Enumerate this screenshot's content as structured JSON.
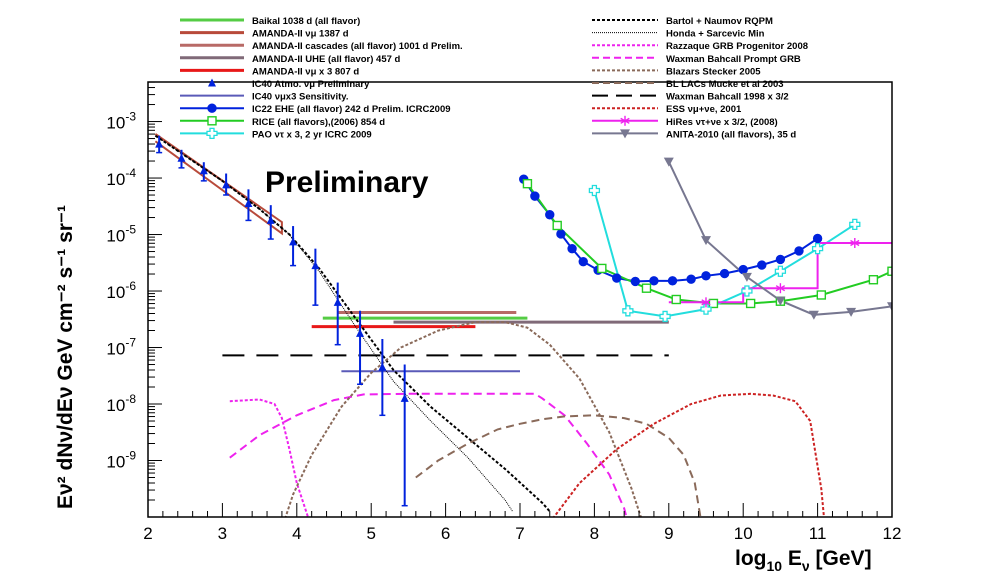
{
  "chart_data": {
    "type": "line",
    "title": "",
    "annotation": "Preliminary",
    "xlabel": "log10 Eν [GeV]",
    "ylabel": "Eν² dNν/dEν GeV cm⁻² s⁻¹ sr⁻¹",
    "xlim": [
      2,
      12
    ],
    "ylim_log10": [
      -10,
      -2.3
    ],
    "x_ticks": [
      "2",
      "3",
      "4",
      "5",
      "6",
      "7",
      "8",
      "9",
      "10",
      "11",
      "12"
    ],
    "y_ticks": [
      {
        "base": "10",
        "exp": "-9",
        "value": -9
      },
      {
        "base": "10",
        "exp": "-8",
        "value": -8
      },
      {
        "base": "10",
        "exp": "-7",
        "value": -7
      },
      {
        "base": "10",
        "exp": "-6",
        "value": -6
      },
      {
        "base": "10",
        "exp": "-5",
        "value": -5
      },
      {
        "base": "10",
        "exp": "-4",
        "value": -4
      },
      {
        "base": "10",
        "exp": "-3",
        "value": -3
      }
    ],
    "legend_left": [
      {
        "label": "Baikal 1038 d (all flavor)",
        "color": "#55cc44",
        "style": "solid",
        "width": 3
      },
      {
        "label": "AMANDA-II νμ 1387 d",
        "color": "#b84a3a",
        "style": "solid",
        "width": 3
      },
      {
        "label": "AMANDA-II cascades (all flavor) 1001 d Prelim.",
        "color": "#b86a66",
        "style": "solid",
        "width": 3
      },
      {
        "label": "AMANDA-II UHE (all flavor) 457 d",
        "color": "#806a78",
        "style": "solid",
        "width": 3
      },
      {
        "label": "AMANDA-II νμ x 3 807 d",
        "color": "#e81818",
        "style": "solid",
        "width": 3
      },
      {
        "label": "IC40 Atmo. νμ Preliminary",
        "color": "#0022dd",
        "style": "triangle",
        "width": 1
      },
      {
        "label": "IC40 νμx3 Sensitivity.",
        "color": "#5a5ab8",
        "style": "solid",
        "width": 2
      },
      {
        "label": "IC22 EHE  (all flavor) 242 d Prelim. ICRC2009",
        "color": "#0022dd",
        "style": "circle",
        "width": 2
      },
      {
        "label": "RICE (all flavors),(2006) 854 d",
        "color": "#22cc22",
        "style": "opensquare",
        "width": 2
      },
      {
        "label": "PAO ντ x 3, 2 yr ICRC 2009",
        "color": "#22dddd",
        "style": "opencross",
        "width": 2
      }
    ],
    "legend_right": [
      {
        "label": "Bartol + Naumov RQPM",
        "color": "#000000",
        "style": "dotted",
        "width": 2
      },
      {
        "label": "Honda + Sarcevic Min",
        "color": "#000000",
        "style": "finedot",
        "width": 1
      },
      {
        "label": "Razzaque GRB Progenitor 2008",
        "color": "#ee22ee",
        "style": "dotted",
        "width": 2
      },
      {
        "label": "Waxman Bahcall Prompt GRB",
        "color": "#ee22ee",
        "style": "dashed",
        "width": 2
      },
      {
        "label": "Blazars Stecker 2005",
        "color": "#8a6a5a",
        "style": "dotted",
        "width": 2
      },
      {
        "label": "BL LACs Mucke et al 2003",
        "color": "#8a6a5a",
        "style": "dashed",
        "width": 2
      },
      {
        "label": "Waxman Bahcall 1998 x 3/2",
        "color": "#000000",
        "style": "longdash",
        "width": 2
      },
      {
        "label": "ESS νμ+νe, 2001",
        "color": "#cc2222",
        "style": "dotted",
        "width": 2
      },
      {
        "label": "HiRes ντ+νe x 3/2, (2008)",
        "color": "#ee22ee",
        "style": "star",
        "width": 2
      },
      {
        "label": "ANITA-2010 (all flavors), 35 d",
        "color": "#777790",
        "style": "downtri",
        "width": 2
      }
    ],
    "series": [
      {
        "name": "Baikal 1038 d (all flavor)",
        "kind": "segment",
        "color": "#55cc44",
        "width": 3,
        "dash": "",
        "x": [
          4.35,
          7.1
        ],
        "y": [
          -6.48,
          -6.48
        ]
      },
      {
        "name": "AMANDA-II νμ 1387 d",
        "kind": "polyline",
        "color": "#b84a3a",
        "width": 2,
        "dash": "",
        "x": [
          2.1,
          3.8,
          3.8,
          2.1
        ],
        "y": [
          -3.22,
          -4.78,
          -4.98,
          -3.35
        ]
      },
      {
        "name": "AMANDA-II cascades (all flavor) 1001 d Prelim.",
        "kind": "segment",
        "color": "#b86a66",
        "width": 3,
        "dash": "",
        "x": [
          4.55,
          6.95
        ],
        "y": [
          -6.38,
          -6.38
        ]
      },
      {
        "name": "AMANDA-II UHE (all flavor) 457 d",
        "kind": "segment",
        "color": "#806a78",
        "width": 3,
        "dash": "",
        "x": [
          5.3,
          9.0
        ],
        "y": [
          -6.55,
          -6.55
        ]
      },
      {
        "name": "AMANDA-II νμ x 3 807 d",
        "kind": "segment",
        "color": "#e81818",
        "width": 3,
        "dash": "",
        "x": [
          4.2,
          6.4
        ],
        "y": [
          -6.63,
          -6.63
        ]
      },
      {
        "name": "IC40 νμx3 Sensitivity.",
        "kind": "segment",
        "color": "#5a5ab8",
        "width": 2,
        "dash": "",
        "x": [
          4.6,
          7.0
        ],
        "y": [
          -7.42,
          -7.42
        ]
      },
      {
        "name": "Waxman Bahcall 1998 x 3/2",
        "kind": "segment",
        "color": "#000000",
        "width": 2,
        "dash": "22,12",
        "x": [
          3.0,
          9.0
        ],
        "y": [
          -7.14,
          -7.14
        ]
      },
      {
        "name": "Bartol + Naumov RQPM",
        "kind": "polyline",
        "color": "#000000",
        "width": 2,
        "dash": "3,2",
        "x": [
          2.1,
          3.0,
          3.5,
          3.9,
          4.3,
          4.8,
          5.3,
          5.8,
          6.3,
          6.8,
          7.3,
          7.4
        ],
        "y": [
          -3.25,
          -4.05,
          -4.55,
          -5.0,
          -5.6,
          -6.5,
          -7.4,
          -8.05,
          -8.6,
          -9.15,
          -9.75,
          -9.9
        ]
      },
      {
        "name": "Honda + Sarcevic Min",
        "kind": "polyline",
        "color": "#000000",
        "width": 1,
        "dash": "1,1",
        "x": [
          2.1,
          3.0,
          3.5,
          3.9,
          4.3,
          4.8,
          5.3,
          5.8,
          6.3,
          6.8,
          6.9
        ],
        "y": [
          -3.25,
          -4.05,
          -4.55,
          -5.0,
          -5.65,
          -6.65,
          -7.6,
          -8.3,
          -8.95,
          -9.7,
          -9.9
        ]
      },
      {
        "name": "Razzaque GRB Progenitor 2008",
        "kind": "polyline",
        "color": "#ee22ee",
        "width": 2,
        "dash": "3,2",
        "x": [
          3.1,
          3.5,
          3.7,
          3.8,
          3.9,
          4.0,
          4.2,
          4.3
        ],
        "y": [
          -7.95,
          -7.92,
          -8.0,
          -8.25,
          -8.8,
          -9.4,
          -10.2,
          -10.6
        ]
      },
      {
        "name": "Waxman Bahcall Prompt GRB",
        "kind": "polyline",
        "color": "#ee22ee",
        "width": 2,
        "dash": "8,5",
        "x": [
          3.1,
          3.5,
          4.0,
          4.5,
          4.9,
          5.5,
          6.3,
          7.2,
          7.3,
          7.6,
          7.9,
          8.2,
          8.3,
          8.4,
          8.45
        ],
        "y": [
          -8.95,
          -8.55,
          -8.2,
          -7.93,
          -7.83,
          -7.82,
          -7.82,
          -7.82,
          -7.9,
          -8.2,
          -8.7,
          -9.25,
          -9.55,
          -9.85,
          -10.1
        ]
      },
      {
        "name": "Blazars Stecker 2005",
        "kind": "polyline",
        "color": "#8a6a5a",
        "width": 2,
        "dash": "3,2",
        "x": [
          3.8,
          3.95,
          4.2,
          4.6,
          5.0,
          5.4,
          5.9,
          6.4,
          6.8,
          7.1,
          7.4,
          7.8,
          8.2,
          8.5,
          8.7
        ],
        "y": [
          -10.2,
          -9.6,
          -8.9,
          -8.05,
          -7.45,
          -7.0,
          -6.7,
          -6.55,
          -6.55,
          -6.65,
          -6.95,
          -7.55,
          -8.5,
          -9.5,
          -10.3
        ]
      },
      {
        "name": "BL LACs Mucke et al 2003",
        "kind": "polyline",
        "color": "#8a6a5a",
        "width": 2,
        "dash": "8,5",
        "x": [
          5.6,
          5.9,
          6.3,
          6.7,
          7.0,
          7.3,
          7.6,
          8.0,
          8.4,
          8.7,
          9.0,
          9.2,
          9.35,
          9.45
        ],
        "y": [
          -9.3,
          -9.0,
          -8.7,
          -8.45,
          -8.35,
          -8.27,
          -8.22,
          -8.2,
          -8.25,
          -8.35,
          -8.6,
          -8.9,
          -9.4,
          -10.2
        ]
      },
      {
        "name": "ESS νμ+νe, 2001",
        "kind": "polyline",
        "color": "#cc2222",
        "width": 2,
        "dash": "3,2",
        "x": [
          7.4,
          7.8,
          8.3,
          8.8,
          9.3,
          9.7,
          10.1,
          10.4,
          10.7,
          10.9,
          10.95,
          11.05,
          11.1
        ],
        "y": [
          -10.1,
          -9.4,
          -8.8,
          -8.35,
          -8.0,
          -7.85,
          -7.82,
          -7.85,
          -7.95,
          -8.3,
          -8.7,
          -9.5,
          -10.2
        ]
      },
      {
        "name": "IC22 EHE  (all flavor) 242 d Prelim. ICRC2009",
        "kind": "markers",
        "color": "#0022dd",
        "width": 2,
        "dash": "",
        "marker": "circle",
        "x": [
          7.05,
          7.2,
          7.4,
          7.55,
          7.7,
          7.85,
          8.05,
          8.3,
          8.55,
          8.8,
          9.05,
          9.3,
          9.5,
          9.75,
          10.0,
          10.25,
          10.5,
          10.75,
          11.0
        ],
        "y": [
          -4.02,
          -4.32,
          -4.65,
          -4.99,
          -5.25,
          -5.48,
          -5.63,
          -5.77,
          -5.83,
          -5.82,
          -5.82,
          -5.79,
          -5.73,
          -5.69,
          -5.62,
          -5.54,
          -5.44,
          -5.29,
          -5.07
        ]
      },
      {
        "name": "RICE (all flavors),(2006) 854 d",
        "kind": "markers",
        "color": "#22cc22",
        "width": 2,
        "dash": "",
        "marker": "opensquare",
        "x": [
          7.1,
          7.5,
          8.1,
          8.7,
          9.1,
          9.6,
          10.1,
          10.5,
          11.05,
          11.75,
          12.0
        ],
        "y": [
          -4.1,
          -4.84,
          -5.6,
          -5.95,
          -6.15,
          -6.22,
          -6.22,
          -6.18,
          -6.07,
          -5.8,
          -5.65
        ]
      },
      {
        "name": "PAO ντ x 3, 2 yr ICRC 2009",
        "kind": "markers",
        "color": "#22dddd",
        "width": 2,
        "dash": "",
        "marker": "opencross",
        "x": [
          8.0,
          8.45,
          8.95,
          9.5,
          10.05,
          10.5,
          11.0,
          11.5
        ],
        "y": [
          -4.22,
          -6.35,
          -6.45,
          -6.32,
          -6.0,
          -5.65,
          -5.25,
          -4.82
        ]
      },
      {
        "name": "HiRes ντ+νe x 3/2, (2008)",
        "kind": "step",
        "color": "#ee22ee",
        "width": 2,
        "dash": "",
        "marker": "star",
        "x": [
          9.0,
          10.0,
          10.0,
          11.0,
          11.0,
          12.0
        ],
        "y": [
          -6.2,
          -6.2,
          -5.95,
          -5.95,
          -5.15,
          -5.15
        ]
      },
      {
        "name": "ANITA-2010 (all flavors), 35 d",
        "kind": "markers",
        "color": "#777790",
        "width": 2,
        "dash": "",
        "marker": "downtri",
        "x": [
          9.0,
          9.5,
          10.05,
          10.5,
          10.95,
          11.45,
          12.0
        ],
        "y": [
          -3.71,
          -5.1,
          -5.75,
          -6.17,
          -6.42,
          -6.37,
          -6.27
        ]
      }
    ],
    "ic40_atmo": {
      "name": "IC40 Atmo. νμ Preliminary",
      "color": "#0022dd",
      "x": [
        2.15,
        2.45,
        2.75,
        3.05,
        3.35,
        3.65,
        3.95,
        4.25,
        4.55,
        4.85,
        5.15,
        5.45
      ],
      "y": [
        -3.4,
        -3.65,
        -3.87,
        -4.12,
        -4.45,
        -4.75,
        -5.13,
        -5.55,
        -6.2,
        -6.75,
        -7.35,
        -7.9
      ],
      "y_lo": [
        -3.55,
        -3.82,
        -4.05,
        -4.3,
        -4.75,
        -5.08,
        -5.55,
        -6.25,
        -6.95,
        -7.65,
        -8.2,
        -9.8
      ],
      "y_hi": [
        -3.25,
        -3.5,
        -3.72,
        -3.92,
        -4.2,
        -4.48,
        -4.85,
        -5.25,
        -5.85,
        -6.35,
        -6.85,
        -7.3
      ]
    }
  }
}
